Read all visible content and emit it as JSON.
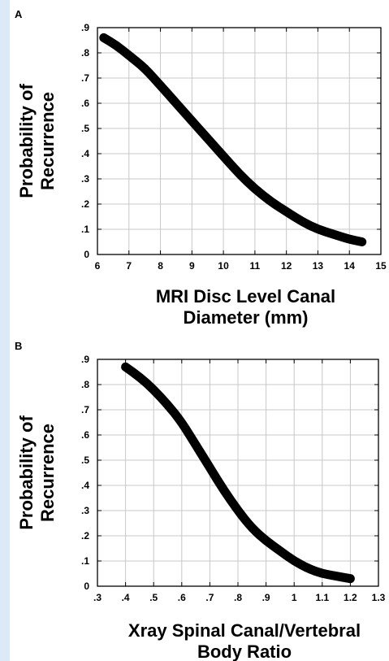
{
  "chart_data": [
    {
      "type": "line",
      "panel_label": "A",
      "ylabel_lines": [
        "Probability of",
        "Recurrence"
      ],
      "xlabel_lines": [
        "MRI Disc Level Canal",
        "Diameter (mm)"
      ],
      "xlim": [
        6,
        15
      ],
      "ylim": [
        0,
        0.9
      ],
      "x_ticks": [
        6,
        7,
        8,
        9,
        10,
        11,
        12,
        13,
        14,
        15
      ],
      "x_tick_labels": [
        "6",
        "7",
        "8",
        "9",
        "10",
        "11",
        "12",
        "13",
        "14",
        "15"
      ],
      "y_ticks": [
        0,
        0.1,
        0.2,
        0.3,
        0.4,
        0.5,
        0.6,
        0.7,
        0.8,
        0.9
      ],
      "y_tick_labels": [
        "0",
        ".1",
        ".2",
        ".3",
        ".4",
        ".5",
        ".6",
        ".7",
        ".8",
        ".9"
      ],
      "grid": true,
      "series": [
        {
          "x": [
            6.2,
            6.6,
            7.0,
            7.5,
            8.0,
            8.5,
            9.0,
            9.5,
            10.0,
            10.5,
            11.0,
            11.5,
            12.0,
            12.5,
            13.0,
            13.5,
            14.0,
            14.4
          ],
          "y": [
            0.86,
            0.83,
            0.79,
            0.74,
            0.67,
            0.6,
            0.53,
            0.46,
            0.39,
            0.32,
            0.26,
            0.21,
            0.17,
            0.13,
            0.1,
            0.08,
            0.06,
            0.05
          ]
        }
      ]
    },
    {
      "type": "line",
      "panel_label": "B",
      "ylabel_lines": [
        "Probability of",
        "Recurrence"
      ],
      "xlabel_lines": [
        "Xray Spinal Canal/Vertebral",
        "Body Ratio"
      ],
      "xlim": [
        0.3,
        1.3
      ],
      "ylim": [
        0,
        0.9
      ],
      "x_ticks": [
        0.3,
        0.4,
        0.5,
        0.6,
        0.7,
        0.8,
        0.9,
        1.0,
        1.1,
        1.2,
        1.3
      ],
      "x_tick_labels": [
        ".3",
        ".4",
        ".5",
        ".6",
        ".7",
        ".8",
        ".9",
        "1",
        "1.1",
        "1.2",
        "1.3"
      ],
      "y_ticks": [
        0,
        0.1,
        0.2,
        0.3,
        0.4,
        0.5,
        0.6,
        0.7,
        0.8,
        0.9
      ],
      "y_tick_labels": [
        "0",
        ".1",
        ".2",
        ".3",
        ".4",
        ".5",
        ".6",
        ".7",
        ".8",
        ".9"
      ],
      "grid": true,
      "series": [
        {
          "x": [
            0.4,
            0.45,
            0.5,
            0.55,
            0.6,
            0.65,
            0.7,
            0.75,
            0.8,
            0.85,
            0.9,
            0.95,
            1.0,
            1.05,
            1.1,
            1.15,
            1.2
          ],
          "y": [
            0.87,
            0.83,
            0.78,
            0.72,
            0.65,
            0.56,
            0.47,
            0.38,
            0.3,
            0.23,
            0.18,
            0.14,
            0.1,
            0.07,
            0.05,
            0.04,
            0.03
          ]
        }
      ]
    }
  ]
}
